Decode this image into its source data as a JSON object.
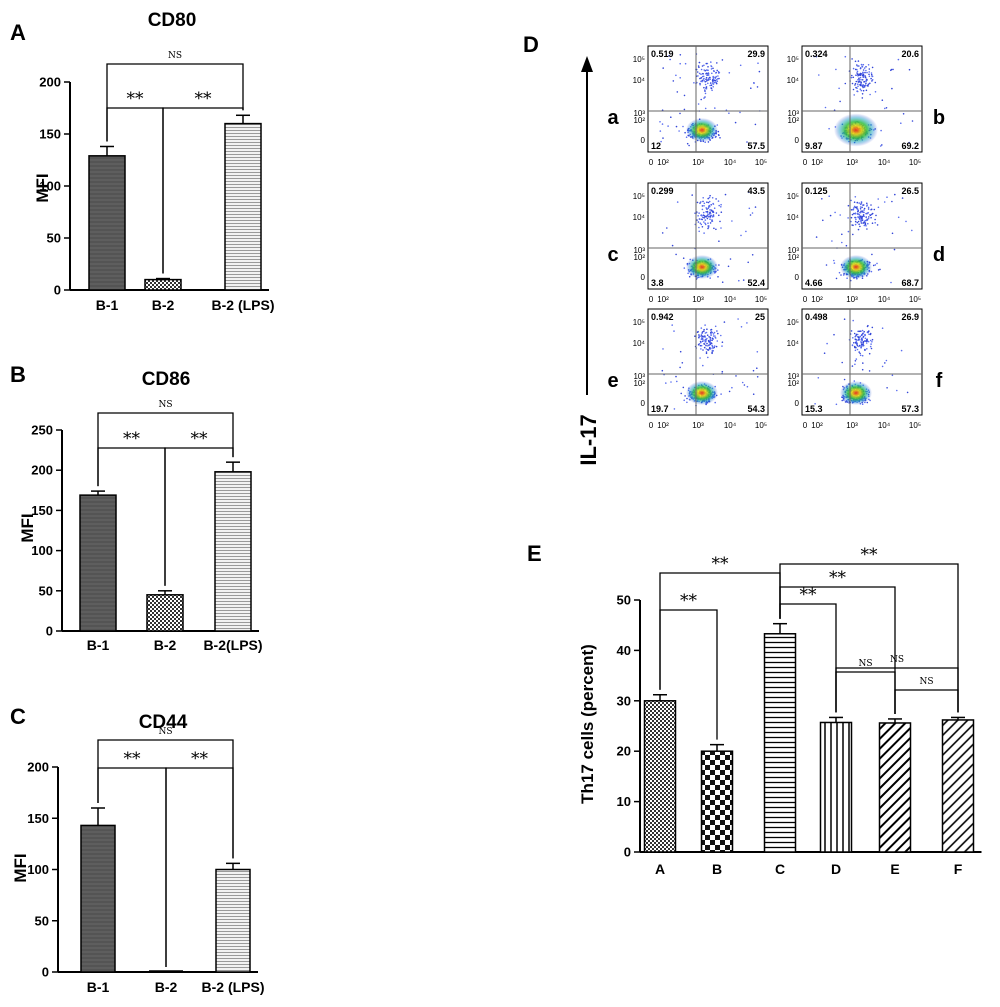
{
  "chart_data": [
    {
      "panel": "A",
      "type": "bar",
      "title": "CD80",
      "ylabel": "MFI",
      "categories": [
        "B-1",
        "B-2",
        "B-2 (LPS)"
      ],
      "values": [
        129,
        10,
        160
      ],
      "errors": [
        9,
        1,
        8
      ],
      "patterns": [
        "dark",
        "check",
        "hstripe"
      ],
      "ylim": [
        0,
        200
      ],
      "yticks": [
        0,
        50,
        100,
        150,
        200
      ],
      "brackets": [
        {
          "from": 0,
          "to": 1,
          "label": "**"
        },
        {
          "from": 1,
          "to": 2,
          "label": "**"
        },
        {
          "from": 0,
          "to": 2,
          "label": "NS"
        }
      ]
    },
    {
      "panel": "B",
      "type": "bar",
      "title": "CD86",
      "ylabel": "MFI",
      "categories": [
        "B-1",
        "B-2",
        "B-2(LPS)"
      ],
      "values": [
        169,
        45,
        198
      ],
      "errors": [
        5,
        5,
        12
      ],
      "patterns": [
        "dark",
        "check",
        "hstripe"
      ],
      "ylim": [
        0,
        250
      ],
      "yticks": [
        0,
        50,
        100,
        150,
        200,
        250
      ],
      "brackets": [
        {
          "from": 0,
          "to": 1,
          "label": "**"
        },
        {
          "from": 1,
          "to": 2,
          "label": "**"
        },
        {
          "from": 0,
          "to": 2,
          "label": "NS"
        }
      ]
    },
    {
      "panel": "C",
      "type": "bar",
      "title": "CD44",
      "ylabel": "MFI",
      "categories": [
        "B-1",
        "B-2",
        "B-2 (LPS)"
      ],
      "values": [
        143,
        0,
        100
      ],
      "errors": [
        17,
        0,
        6
      ],
      "patterns": [
        "dark",
        "check",
        "hstripe"
      ],
      "ylim": [
        0,
        200
      ],
      "yticks": [
        0,
        50,
        100,
        150,
        200
      ],
      "brackets": [
        {
          "from": 0,
          "to": 1,
          "label": "**"
        },
        {
          "from": 1,
          "to": 2,
          "label": "**"
        },
        {
          "from": 0,
          "to": 2,
          "label": "NS"
        }
      ]
    },
    {
      "panel": "D",
      "type": "scatter",
      "ylabel": "IL-17",
      "axis_ticks": [
        "0",
        "10²",
        "10³",
        "10⁴",
        "10⁵"
      ],
      "plots": [
        {
          "label": "a",
          "quadrants": {
            "ul": "0.519",
            "ur": "29.9",
            "ll": "12",
            "lr": "57.5"
          }
        },
        {
          "label": "b",
          "quadrants": {
            "ul": "0.324",
            "ur": "20.6",
            "ll": "9.87",
            "lr": "69.2"
          }
        },
        {
          "label": "c",
          "quadrants": {
            "ul": "0.299",
            "ur": "43.5",
            "ll": "3.8",
            "lr": "52.4"
          }
        },
        {
          "label": "d",
          "quadrants": {
            "ul": "0.125",
            "ur": "26.5",
            "ll": "4.66",
            "lr": "68.7"
          }
        },
        {
          "label": "e",
          "quadrants": {
            "ul": "0.942",
            "ur": "25",
            "ll": "19.7",
            "lr": "54.3"
          }
        },
        {
          "label": "f",
          "quadrants": {
            "ul": "0.498",
            "ur": "26.9",
            "ll": "15.3",
            "lr": "57.3"
          }
        }
      ]
    },
    {
      "panel": "E",
      "type": "bar",
      "title": "",
      "ylabel": "Th17 cells (percent)",
      "categories": [
        "A",
        "B",
        "C",
        "D",
        "E",
        "F"
      ],
      "values": [
        30,
        20,
        43.3,
        25.7,
        25.6,
        26.2
      ],
      "errors": [
        1.2,
        1.3,
        2,
        1,
        0.8,
        0.5
      ],
      "patterns": [
        "check",
        "bigcheck",
        "hstripe",
        "vstripe",
        "diag",
        "diag2"
      ],
      "ylim": [
        0,
        50
      ],
      "yticks": [
        0,
        10,
        20,
        30,
        40,
        50
      ],
      "brackets": [
        {
          "from": 0,
          "to": 1,
          "label": "**"
        },
        {
          "from": 0,
          "to": 2,
          "label": "**"
        },
        {
          "from": 2,
          "to": 3,
          "label": "**"
        },
        {
          "from": 2,
          "to": 4,
          "label": "**"
        },
        {
          "from": 2,
          "to": 5,
          "label": "**"
        },
        {
          "from": 3,
          "to": 4,
          "label": "NS"
        },
        {
          "from": 4,
          "to": 5,
          "label": "NS"
        },
        {
          "from": 3,
          "to": 5,
          "label": "NS"
        }
      ]
    }
  ]
}
